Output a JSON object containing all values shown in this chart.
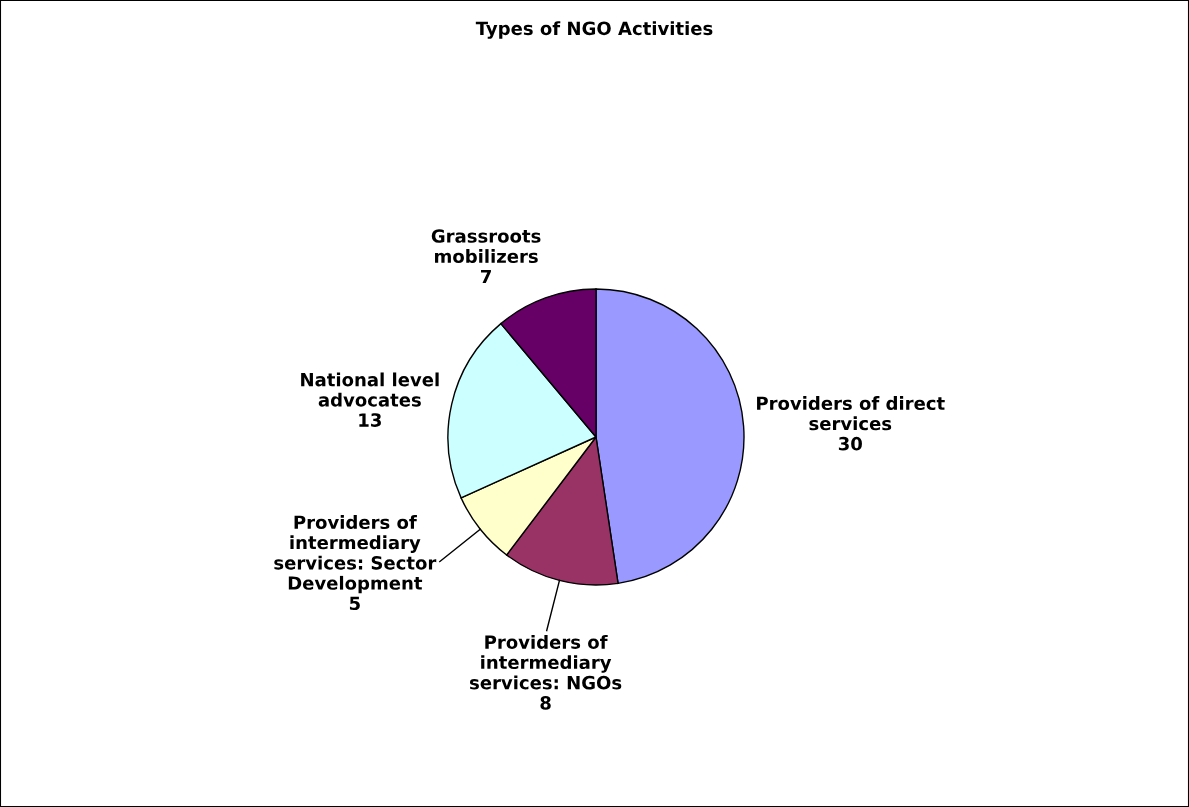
{
  "chart_data": {
    "type": "pie",
    "title": "Types of NGO Activities",
    "categories": [
      "Providers of direct services",
      "Providers of intermediary services: NGOs",
      "Providers of intermediary services: Sector Development",
      "National level advocates",
      "Grassroots mobilizers"
    ],
    "values": [
      30,
      8,
      5,
      13,
      7
    ],
    "colors": [
      "#9999ff",
      "#993366",
      "#ffffcc",
      "#ccffff",
      "#660066"
    ],
    "data_labels": true,
    "legend": false
  }
}
